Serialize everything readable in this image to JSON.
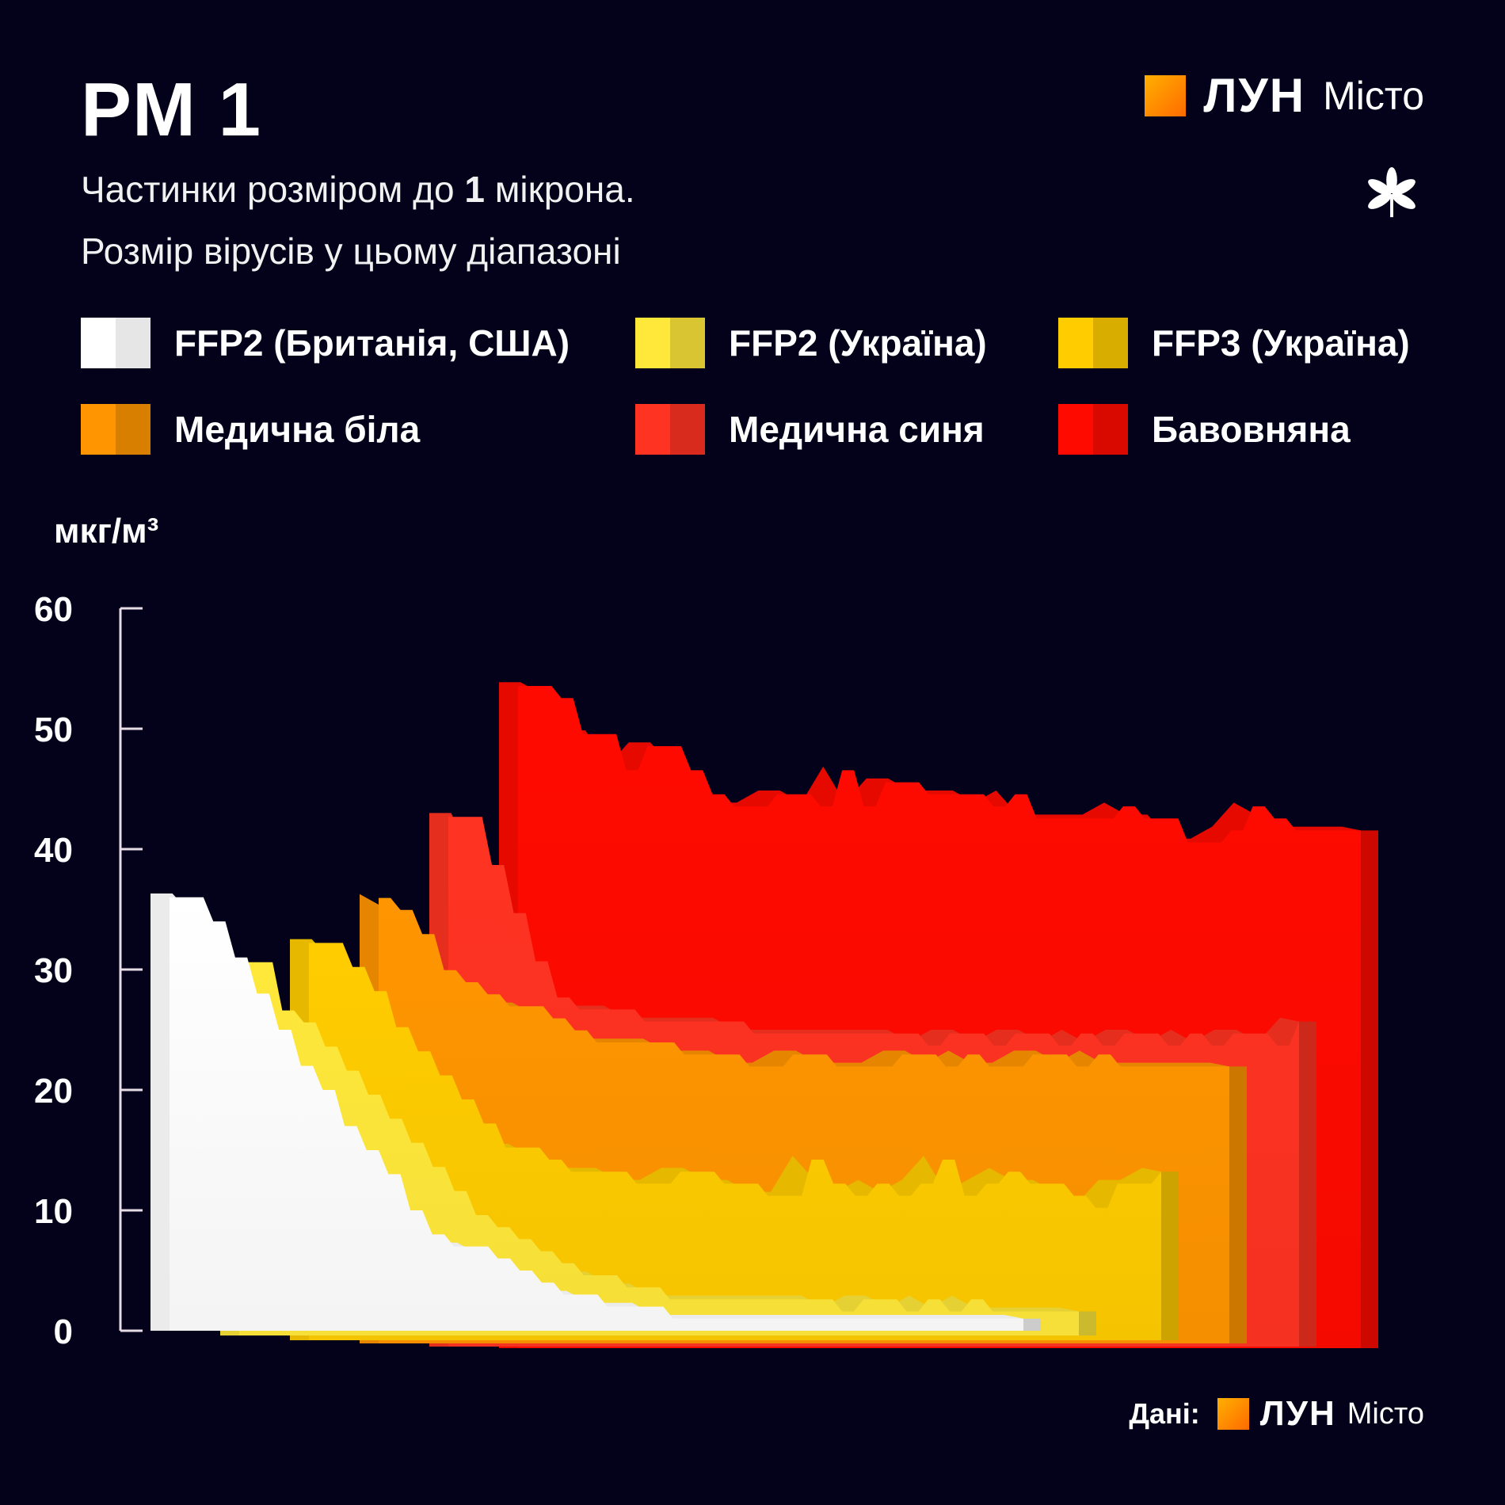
{
  "title": "PM 1",
  "subtitle": {
    "line1_before": "Частинки розміром до ",
    "line1_bold": "1",
    "line1_after": " мікрона.",
    "line2": "Розмір вірусів у цьому діапазоні"
  },
  "brand": {
    "lun": "ЛУН",
    "misto": "Місто",
    "logo_icon": "lun-square-icon",
    "emblem_icon": "chestnut-leaf-icon"
  },
  "source": {
    "label": "Дані:",
    "lun": "ЛУН",
    "misto": "Місто"
  },
  "colors": {
    "background": "#03021a",
    "ffp2_uk_us": "#ffffff",
    "ffp2_ua": "#ffe83a",
    "ffp3_ua": "#ffcc00",
    "medical_white": "#ff9500",
    "medical_blue": "#ff3322",
    "cotton": "#ff0a00"
  },
  "chart_data": {
    "type": "area",
    "style": "3d-stacked-ribbons",
    "ylabel": "мкг/м³",
    "ylim": [
      0,
      60
    ],
    "yticks": [
      "0",
      "10",
      "20",
      "30",
      "40",
      "50",
      "60"
    ],
    "legend_placement": "top",
    "series": [
      {
        "name": "FFP2 (Британія, США)",
        "color": "#ffffff",
        "values": [
          36,
          36,
          34,
          31,
          28,
          25,
          22,
          20,
          17,
          15,
          13,
          10,
          8,
          7,
          7,
          6,
          5,
          4,
          3,
          3,
          2,
          2,
          2,
          1,
          1,
          1,
          1,
          1,
          1,
          1,
          1,
          1,
          1,
          1,
          1,
          1,
          1,
          1,
          1,
          1
        ]
      },
      {
        "name": "FFP2 (Україна)",
        "color": "#ffe83a",
        "values": [
          31,
          31,
          27,
          26,
          24,
          22,
          20,
          18,
          16,
          14,
          12,
          10,
          9,
          8,
          7,
          6,
          5,
          5,
          4,
          4,
          3,
          3,
          3,
          3,
          3,
          3,
          3,
          3,
          2,
          3,
          3,
          2,
          3,
          2,
          3,
          2,
          2,
          2,
          2,
          2
        ]
      },
      {
        "name": "FFP3 (Україна)",
        "color": "#ffcc00",
        "values": [
          33,
          33,
          31,
          29,
          26,
          24,
          22,
          20,
          18,
          16,
          16,
          15,
          14,
          14,
          14,
          13,
          13,
          14,
          14,
          13,
          13,
          12,
          12,
          15,
          13,
          12,
          13,
          12,
          13,
          15,
          12,
          13,
          14,
          13,
          13,
          12,
          11,
          13,
          13,
          14
        ]
      },
      {
        "name": "Медична біла",
        "color": "#ff9500",
        "values": [
          37,
          36,
          34,
          31,
          30,
          29,
          28,
          28,
          27,
          26,
          25,
          25,
          25,
          25,
          24,
          24,
          24,
          23,
          23,
          24,
          24,
          23,
          23,
          23,
          24,
          24,
          23,
          24,
          23,
          23,
          24,
          24,
          23,
          24,
          23,
          23,
          23,
          23,
          23,
          23
        ]
      },
      {
        "name": "Медична синя",
        "color": "#ff3322",
        "values": [
          44,
          44,
          40,
          36,
          32,
          29,
          28,
          28,
          28,
          27,
          27,
          27,
          27,
          27,
          26,
          26,
          26,
          26,
          26,
          26,
          26,
          26,
          25,
          26,
          26,
          25,
          26,
          26,
          25,
          26,
          25,
          26,
          26,
          25,
          26,
          25,
          26,
          26,
          25,
          27
        ]
      },
      {
        "name": "Бавовняна",
        "color": "#ff0a00",
        "values": [
          55,
          55,
          54,
          51,
          51,
          48,
          50,
          50,
          48,
          46,
          45,
          45,
          46,
          46,
          45,
          48,
          45,
          47,
          47,
          46,
          46,
          46,
          45,
          46,
          44,
          44,
          44,
          44,
          45,
          44,
          44,
          42,
          42,
          43,
          45,
          44,
          43,
          43,
          43,
          43
        ]
      }
    ]
  }
}
